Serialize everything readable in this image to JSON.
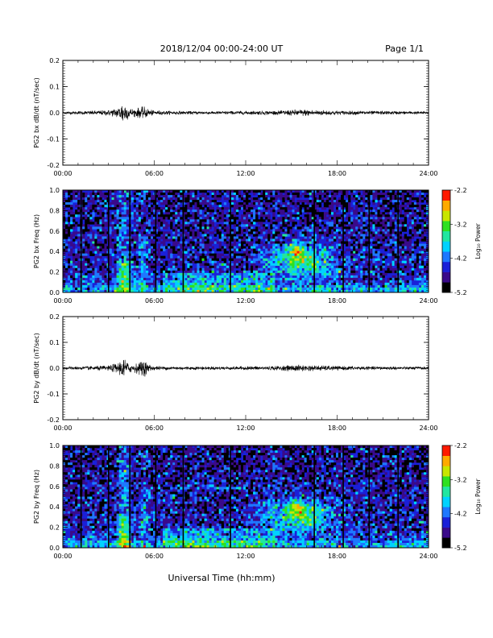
{
  "header": {
    "title": "2018/12/04  00:00-24:00 UT",
    "page_label": "Page 1/1"
  },
  "footer": {
    "xlabel": "Universal Time (hh:mm)"
  },
  "time_ticks": [
    "00:00",
    "06:00",
    "12:00",
    "18:00",
    "24:00"
  ],
  "colorbar": {
    "label": "Log₁₀ Power",
    "ticks": [
      "-2.2",
      "-3.2",
      "-4.2",
      "-5.2"
    ],
    "colors": [
      "#000000",
      "#3a0a8a",
      "#1a20d8",
      "#1e78ff",
      "#00d2ff",
      "#22e6a0",
      "#2ee020",
      "#c8e600",
      "#ffaa00",
      "#ff1a00"
    ]
  },
  "chart_data": [
    {
      "type": "line",
      "ylabel": "PG2 bx dB/dt (nT/sec)",
      "yticks": [
        "0.2",
        "0.1",
        "0.0",
        "-0.1",
        "-0.2"
      ],
      "xlim": [
        0,
        24
      ],
      "ylim": [
        -0.2,
        0.2
      ],
      "series": [
        {
          "x": [
            0,
            1,
            2,
            3,
            3.6,
            3.8,
            3.95,
            4.1,
            4.3,
            4.6,
            5.0,
            5.3,
            5.6,
            6,
            8,
            10,
            12,
            14,
            15.5,
            16,
            17,
            18,
            20,
            22,
            24
          ],
          "y_envelope": [
            0.005,
            0.006,
            0.008,
            0.01,
            0.02,
            0.03,
            0.04,
            0.035,
            0.02,
            0.015,
            0.02,
            0.025,
            0.015,
            0.008,
            0.006,
            0.006,
            0.007,
            0.008,
            0.012,
            0.012,
            0.01,
            0.008,
            0.007,
            0.006,
            0.005
          ],
          "y_min": [
            -0.005,
            -0.006,
            -0.008,
            -0.01,
            -0.02,
            -0.03,
            -0.06,
            -0.04,
            -0.02,
            -0.015,
            -0.02,
            -0.02,
            -0.015,
            -0.008,
            -0.006,
            -0.006,
            -0.007,
            -0.008,
            -0.012,
            -0.012,
            -0.01,
            -0.008,
            -0.007,
            -0.006,
            -0.005
          ]
        }
      ]
    },
    {
      "type": "heatmap",
      "ylabel": "PG2 bx Freq (Hz)",
      "yticks": [
        "1.0",
        "0.8",
        "0.6",
        "0.4",
        "0.2",
        "0.0"
      ],
      "xlim": [
        0,
        24
      ],
      "ylim": [
        0,
        1
      ],
      "zlim": [
        -5.2,
        -2.2
      ],
      "vertical_lines": [
        1.2,
        3.0,
        4.4,
        6.1,
        7.9,
        11.0,
        16.5,
        18.4,
        20.1,
        22.0
      ]
    },
    {
      "type": "line",
      "ylabel": "PG2 by dB/dt (nT/sec)",
      "yticks": [
        "0.2",
        "0.1",
        "0.0",
        "-0.1",
        "-0.2"
      ],
      "xlim": [
        0,
        24
      ],
      "ylim": [
        -0.2,
        0.2
      ],
      "series": [
        {
          "x": [
            0,
            1,
            2,
            3,
            3.6,
            3.8,
            3.95,
            4.1,
            4.3,
            4.6,
            5.0,
            5.3,
            5.6,
            6,
            8,
            10,
            12,
            14,
            15.5,
            16,
            17,
            18,
            20,
            22,
            24
          ],
          "y_envelope": [
            0.006,
            0.006,
            0.008,
            0.01,
            0.02,
            0.03,
            0.045,
            0.03,
            0.02,
            0.015,
            0.02,
            0.03,
            0.015,
            0.008,
            0.006,
            0.006,
            0.007,
            0.008,
            0.012,
            0.01,
            0.01,
            0.008,
            0.007,
            0.006,
            0.006
          ],
          "y_min": [
            -0.006,
            -0.006,
            -0.008,
            -0.01,
            -0.02,
            -0.03,
            -0.05,
            -0.03,
            -0.02,
            -0.015,
            -0.025,
            -0.04,
            -0.015,
            -0.008,
            -0.006,
            -0.006,
            -0.007,
            -0.008,
            -0.015,
            -0.012,
            -0.01,
            -0.008,
            -0.007,
            -0.006,
            -0.006
          ]
        }
      ]
    },
    {
      "type": "heatmap",
      "ylabel": "PG2 by Freq (Hz)",
      "yticks": [
        "1.0",
        "0.8",
        "0.6",
        "0.4",
        "0.2",
        "0.0"
      ],
      "xlim": [
        0,
        24
      ],
      "ylim": [
        0,
        1
      ],
      "zlim": [
        -5.2,
        -2.2
      ],
      "vertical_lines": [
        1.2,
        3.0,
        4.4,
        6.1,
        7.9,
        11.0,
        16.5,
        18.4,
        20.1,
        22.0
      ]
    }
  ]
}
